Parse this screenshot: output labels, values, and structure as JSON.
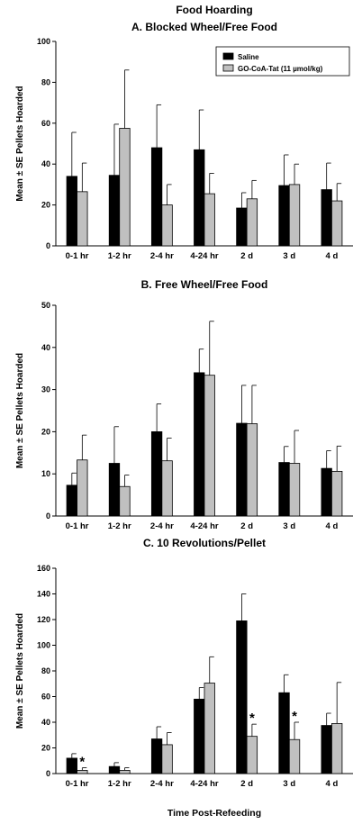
{
  "figure_title": "Food Hoarding",
  "xlabel": "Time Post-Refeeding",
  "legend": [
    {
      "label": "Saline",
      "color": "#000000"
    },
    {
      "label": "GO-CoA-Tat (11 µmol/kg)",
      "color": "#c0c0c0"
    }
  ],
  "chart_data": [
    {
      "type": "bar",
      "title": "A. Blocked Wheel/Free Food",
      "ylabel": "Mean ± SE Pellets Hoarded",
      "ylim": [
        0,
        100
      ],
      "yticks": [
        0,
        20,
        40,
        60,
        80,
        100
      ],
      "categories": [
        "0-1 hr",
        "1-2 hr",
        "2-4 hr",
        "4-24 hr",
        "2 d",
        "3 d",
        "4 d"
      ],
      "series": [
        {
          "name": "Saline",
          "values": [
            34,
            34.5,
            48,
            47,
            18.5,
            29.5,
            27.5
          ],
          "errors": [
            21.5,
            25,
            21,
            19.5,
            7.5,
            15,
            13
          ]
        },
        {
          "name": "GO-CoA-Tat (11 µmol/kg)",
          "values": [
            26.5,
            57.5,
            20,
            25.5,
            23,
            30,
            22
          ],
          "errors": [
            14,
            28.5,
            10,
            10,
            9,
            10,
            8.5
          ]
        }
      ],
      "significance": []
    },
    {
      "type": "bar",
      "title": "B. Free Wheel/Free Food",
      "ylabel": "Mean ± SE Pellets Hoarded",
      "ylim": [
        0,
        50
      ],
      "yticks": [
        0,
        10,
        20,
        30,
        40,
        50
      ],
      "categories": [
        "0-1 hr",
        "1-2 hr",
        "2-4 hr",
        "4-24 hr",
        "2 d",
        "3 d",
        "4 d"
      ],
      "series": [
        {
          "name": "Saline",
          "values": [
            7.3,
            12.5,
            20,
            34,
            22,
            12.7,
            11.3
          ],
          "errors": [
            2.9,
            8.7,
            6.6,
            5.6,
            9,
            3.8,
            4.2
          ]
        },
        {
          "name": "GO-CoA-Tat (11 µmol/kg)",
          "values": [
            13.3,
            7,
            13.1,
            33.4,
            21.9,
            12.5,
            10.6
          ],
          "errors": [
            5.9,
            2.7,
            5.4,
            12.8,
            9.1,
            7.8,
            6
          ]
        }
      ],
      "significance": []
    },
    {
      "type": "bar",
      "title": "C. 10 Revolutions/Pellet",
      "ylabel": "Mean ± SE Pellets Hoarded",
      "ylim": [
        0,
        160
      ],
      "yticks": [
        0,
        20,
        40,
        60,
        80,
        100,
        120,
        140,
        160
      ],
      "categories": [
        "0-1 hr",
        "1-2 hr",
        "2-4 hr",
        "4-24 hr",
        "2 d",
        "3 d",
        "4 d"
      ],
      "series": [
        {
          "name": "Saline",
          "values": [
            12,
            5.5,
            27,
            58,
            119,
            63,
            37.5
          ],
          "errors": [
            3.5,
            3,
            9.5,
            9,
            21,
            14,
            9.5
          ]
        },
        {
          "name": "GO-CoA-Tat (11 µmol/kg)",
          "values": [
            2.5,
            2.5,
            22.5,
            70.5,
            29,
            26.5,
            39
          ],
          "errors": [
            2,
            2,
            9.5,
            20.5,
            9.5,
            13.5,
            32
          ]
        }
      ],
      "significance": [
        {
          "category": "0-1 hr",
          "label": "*"
        },
        {
          "category": "2 d",
          "label": "*"
        },
        {
          "category": "3 d",
          "label": "*"
        }
      ]
    }
  ]
}
